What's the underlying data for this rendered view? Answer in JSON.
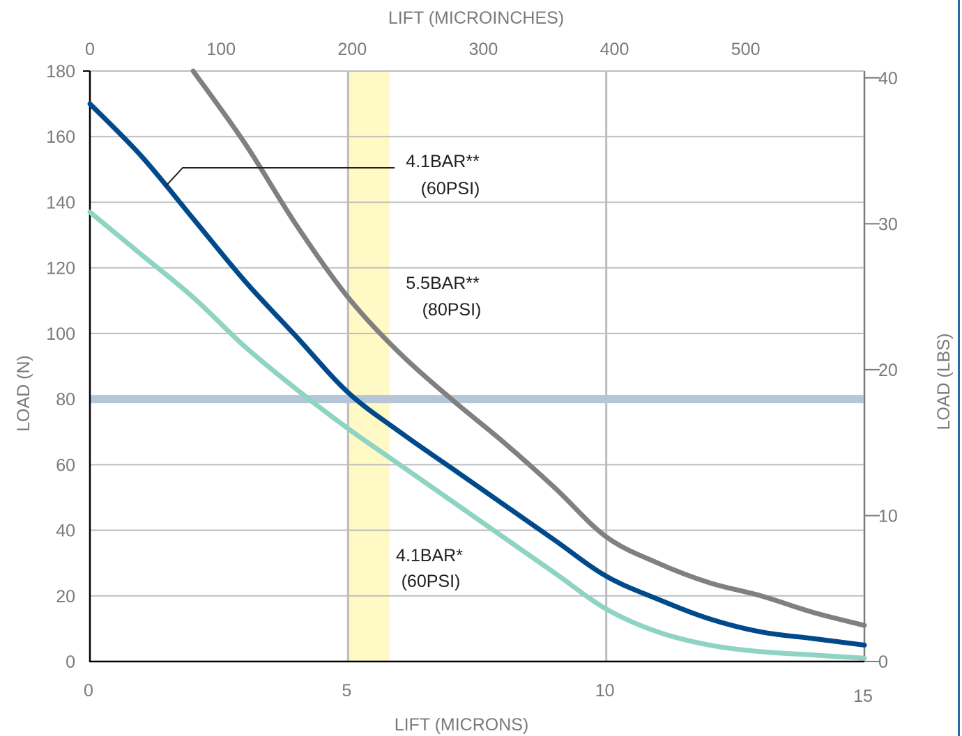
{
  "chart_data": {
    "type": "line",
    "x_top_label": "LIFT (MICROINCHES)",
    "x_bottom_label": "LIFT (MICRONS)",
    "y_left_label": "LOAD (N)",
    "y_right_label": "LOAD (LBS)",
    "x_ticks": [
      "0",
      "5",
      "10",
      "15"
    ],
    "x_top_ticks": [
      "0",
      "100",
      "200",
      "300",
      "400",
      "500"
    ],
    "y_left_ticks": [
      "0",
      "20",
      "40",
      "60",
      "80",
      "100",
      "120",
      "140",
      "160",
      "180"
    ],
    "y_right_ticks": [
      "0",
      "10",
      "20",
      "30",
      "40"
    ],
    "xlim": [
      0,
      15
    ],
    "ylim": [
      0,
      180
    ],
    "grid": true,
    "highlight_band_x": [
      5,
      5.8
    ],
    "highlight_band_color": "#fff9c6",
    "reference_line_y": 80,
    "reference_line_color": "#b4c6d8",
    "series": [
      {
        "name": "5.5BAR** (80PSI)",
        "color": "#808080",
        "x": [
          2,
          3,
          4,
          5,
          6,
          7,
          8,
          9,
          10,
          11,
          12,
          13,
          14,
          15
        ],
        "y": [
          180,
          158,
          133,
          111,
          94,
          80,
          67,
          53,
          38,
          30,
          24,
          20,
          15,
          11
        ]
      },
      {
        "name": "4.1BAR** (60PSI)",
        "color": "#004a8b",
        "x": [
          0,
          1,
          2,
          3,
          4,
          5,
          6,
          7,
          8,
          9,
          10,
          11,
          12,
          13,
          14,
          15
        ],
        "y": [
          170,
          154,
          135,
          116,
          99,
          82,
          70,
          59,
          48,
          37,
          26,
          19,
          13,
          9,
          7,
          5
        ]
      },
      {
        "name": "4.1BAR* (60PSI)",
        "color": "#8fd3c3",
        "x": [
          0,
          1,
          2,
          3,
          4,
          5,
          6,
          7,
          8,
          9,
          10,
          11,
          12,
          13,
          14,
          15
        ],
        "y": [
          137,
          124,
          111,
          96,
          83,
          71,
          60,
          49,
          38,
          27,
          16,
          9,
          5,
          3,
          2,
          1
        ]
      }
    ],
    "annotations": [
      {
        "id": "ann_41_dbl",
        "line1": "4.1BAR**",
        "line2": "(60PSI)"
      },
      {
        "id": "ann_55",
        "line1": "5.5BAR**",
        "line2": "(80PSI)"
      },
      {
        "id": "ann_41_single",
        "line1": "4.1BAR*",
        "line2": "(60PSI)"
      }
    ]
  },
  "colors": {
    "frame_border": "#2a6aa6",
    "grid": "#bdbdbd",
    "axis": "#000000"
  }
}
